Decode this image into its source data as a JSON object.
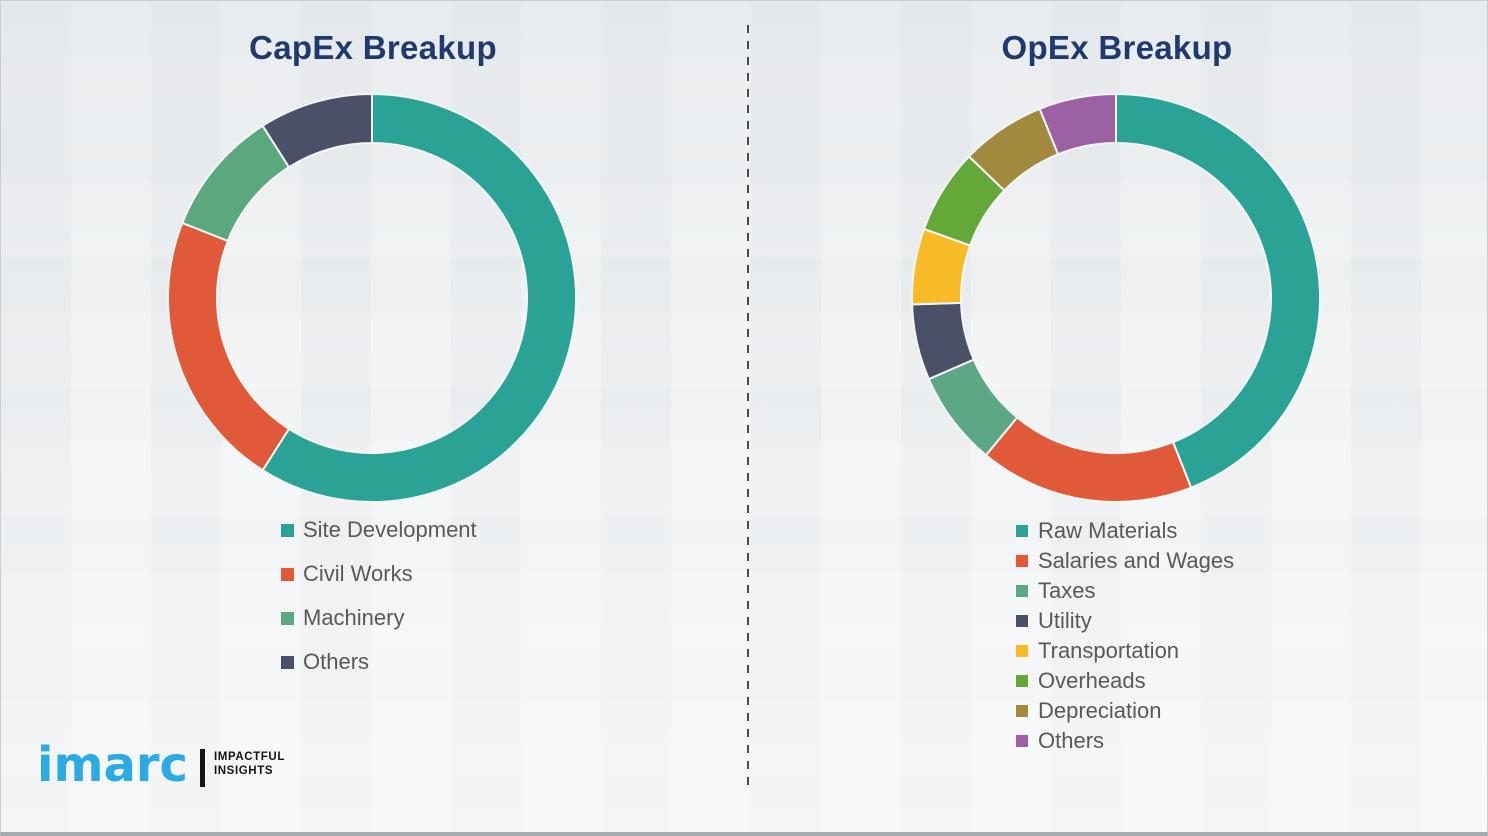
{
  "page": {
    "background_color": "#eef0f2",
    "title_color": "#1e3a6e",
    "legend_text_color": "#595959",
    "divider_style": "vertical dashed line",
    "divider_color": "#4b4b4d"
  },
  "chart_data": [
    {
      "type": "pie",
      "subtype": "donut",
      "title": "CapEx Breakup",
      "categories": [
        "Site Development",
        "Civil Works",
        "Machinery",
        "Others"
      ],
      "values": [
        59,
        22,
        10,
        9
      ],
      "values_unit": "percent (estimated from arc angles; no data labels shown)",
      "colors": [
        "#2aa396",
        "#e05a3a",
        "#5ba87e",
        "#4a5068"
      ],
      "start_angle_deg": 0,
      "direction": "clockwise",
      "donut_hole_ratio": 0.76,
      "legend_position": "below chart, left-aligned"
    },
    {
      "type": "pie",
      "subtype": "donut",
      "title": "OpEx Breakup",
      "categories": [
        "Raw Materials",
        "Salaries and Wages",
        "Taxes",
        "Utility",
        "Transportation",
        "Overheads",
        "Depreciation",
        "Others"
      ],
      "values": [
        44,
        17,
        7.5,
        6,
        6,
        6.7,
        6.7,
        6.1
      ],
      "values_unit": "percent (estimated from arc angles; no data labels shown)",
      "colors": [
        "#2aa396",
        "#e05a3a",
        "#5ca886",
        "#4a5068",
        "#f6bb27",
        "#63a838",
        "#a18a3e",
        "#9c60a4"
      ],
      "start_angle_deg": 0,
      "direction": "clockwise",
      "donut_hole_ratio": 0.76,
      "legend_position": "below chart, left-aligned"
    }
  ],
  "logo": {
    "brand": "imarc",
    "brand_color": "#2aabe3",
    "tagline_line1": "IMPACTFUL",
    "tagline_line2": "INSIGHTS"
  }
}
